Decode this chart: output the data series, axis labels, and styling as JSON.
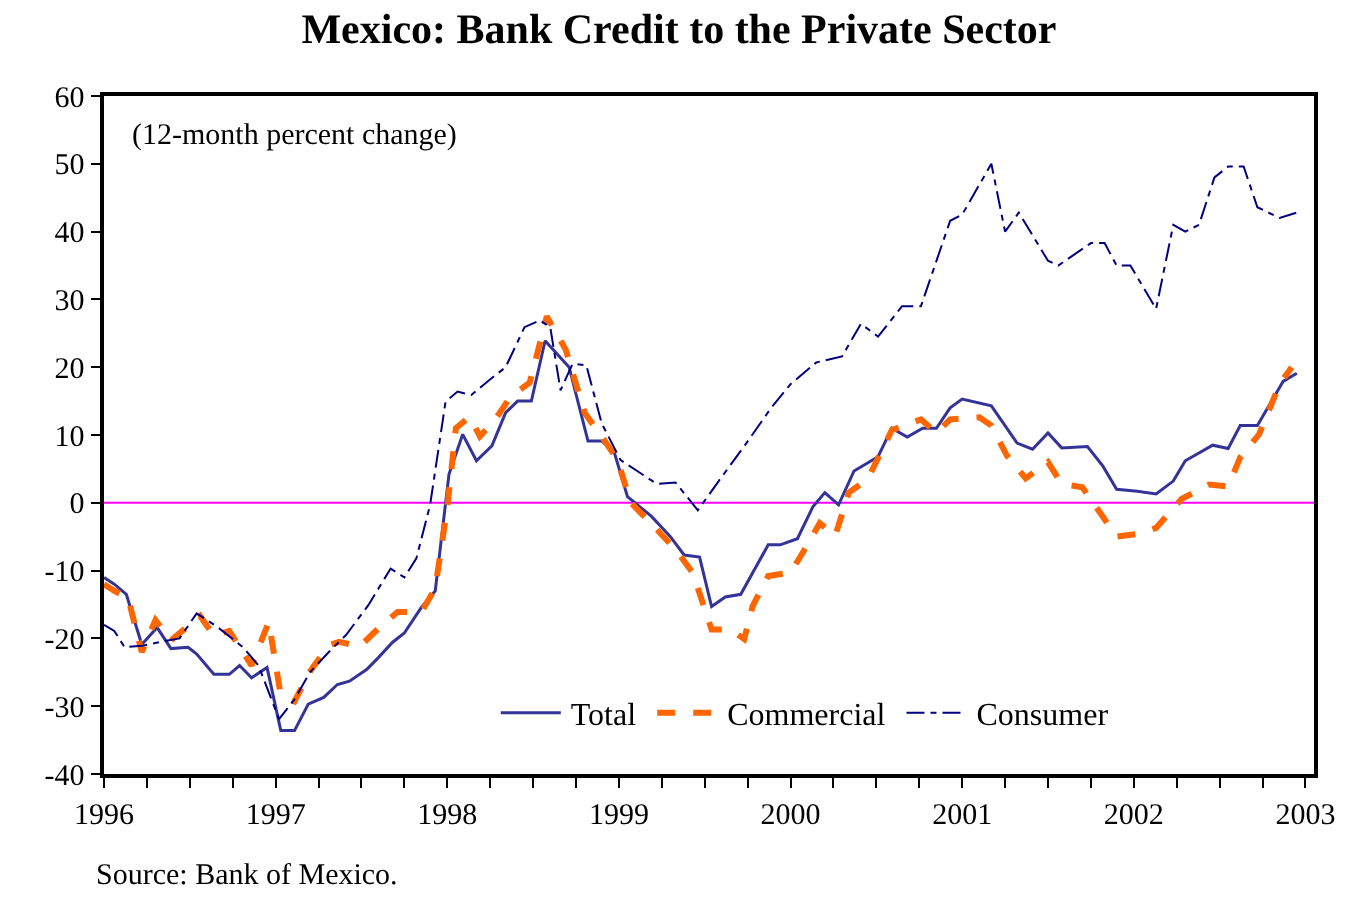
{
  "chart_data": {
    "type": "line",
    "title": "Mexico: Bank Credit to the Private Sector",
    "annotations": [
      "(12-month percent change)",
      "Source: Bank of Mexico."
    ],
    "xlim": [
      1996,
      2003.05
    ],
    "xticks": [
      1996,
      {
        "value": 1996.25,
        "label": null
      },
      {
        "value": 1996.5,
        "label": null
      },
      {
        "value": 1996.75,
        "label": null
      },
      1997,
      {
        "value": 1997.25,
        "label": null
      },
      {
        "value": 1997.5,
        "label": null
      },
      {
        "value": 1997.75,
        "label": null
      },
      1998,
      {
        "value": 1998.25,
        "label": null
      },
      {
        "value": 1998.5,
        "label": null
      },
      {
        "value": 1998.75,
        "label": null
      },
      1999,
      {
        "value": 1999.25,
        "label": null
      },
      {
        "value": 1999.5,
        "label": null
      },
      {
        "value": 1999.75,
        "label": null
      },
      2000,
      {
        "value": 2000.25,
        "label": null
      },
      {
        "value": 2000.5,
        "label": null
      },
      {
        "value": 2000.75,
        "label": null
      },
      2001,
      {
        "value": 2001.25,
        "label": null
      },
      {
        "value": 2001.5,
        "label": null
      },
      {
        "value": 2001.75,
        "label": null
      },
      2002,
      {
        "value": 2002.25,
        "label": null
      },
      {
        "value": 2002.5,
        "label": null
      },
      {
        "value": 2002.75,
        "label": null
      },
      2003
    ],
    "ylim": [
      -40,
      60
    ],
    "yticks": [
      -40,
      -30,
      -20,
      -10,
      0,
      10,
      20,
      30,
      40,
      50,
      60
    ],
    "grid": false,
    "legend": "bottom",
    "ref_lines": [
      {
        "axis": "y",
        "value": 0,
        "color": "#ff00ff"
      }
    ],
    "series": [
      {
        "name": "Total",
        "color": "#333399",
        "line_style": "solid",
        "x": [
          1996.0,
          1996.06,
          1996.13,
          1996.22,
          1996.31,
          1996.39,
          1996.49,
          1996.54,
          1996.64,
          1996.73,
          1996.79,
          1996.86,
          1996.95,
          1997.03,
          1997.11,
          1997.19,
          1997.28,
          1997.36,
          1997.43,
          1997.53,
          1997.6,
          1997.68,
          1997.75,
          1997.85,
          1997.93,
          1998.01,
          1998.09,
          1998.17,
          1998.26,
          1998.34,
          1998.41,
          1998.49,
          1998.57,
          1998.71,
          1998.82,
          1998.9,
          1998.97,
          1999.05,
          1999.19,
          1999.3,
          1999.38,
          1999.47,
          1999.54,
          1999.62,
          1999.71,
          1999.87,
          1999.94,
          2000.04,
          2000.13,
          2000.2,
          2000.28,
          2000.37,
          2000.51,
          2000.59,
          2000.68,
          2000.77,
          2000.85,
          2000.93,
          2001.0,
          2001.17,
          2001.32,
          2001.41,
          2001.5,
          2001.58,
          2001.73,
          2001.82,
          2001.9,
          2002.02,
          2002.13,
          2002.23,
          2002.3,
          2002.46,
          2002.55,
          2002.62,
          2002.72,
          2002.87,
          2002.95
        ],
        "values": [
          -11,
          -12,
          -13.5,
          -20.9,
          -18.4,
          -21.5,
          -21.3,
          -22.3,
          -25.3,
          -25.3,
          -24,
          -25.8,
          -24.3,
          -33.6,
          -33.6,
          -29.7,
          -28.7,
          -26.8,
          -26.3,
          -24.6,
          -22.8,
          -20.6,
          -19.2,
          -15.4,
          -13,
          4.2,
          10.1,
          6.2,
          8.4,
          13.3,
          15,
          15,
          23.9,
          20,
          9.1,
          9.1,
          7.7,
          0.9,
          -2,
          -5,
          -7.7,
          -8,
          -15.3,
          -13.9,
          -13.5,
          -6.2,
          -6.2,
          -5.3,
          -0.6,
          1.5,
          -0.3,
          4.7,
          6.8,
          11,
          9.7,
          11,
          11,
          14,
          15.3,
          14.3,
          8.8,
          7.9,
          10.3,
          8.1,
          8.3,
          5.4,
          2,
          1.7,
          1.3,
          3.2,
          6.2,
          8.5,
          8,
          11.4,
          11.4,
          17.9,
          19.1
        ]
      },
      {
        "name": "Commercial",
        "color": "#ff6600",
        "line_style": "dashed",
        "x": [
          1996.0,
          1996.06,
          1996.14,
          1996.22,
          1996.3,
          1996.39,
          1996.47,
          1996.56,
          1996.64,
          1996.73,
          1996.86,
          1996.96,
          1997.03,
          1997.11,
          1997.2,
          1997.31,
          1997.37,
          1997.49,
          1997.6,
          1997.71,
          1997.85,
          1997.93,
          1998.0,
          1998.05,
          1998.13,
          1998.19,
          1998.28,
          1998.37,
          1998.48,
          1998.58,
          1998.69,
          1998.8,
          1998.91,
          1998.99,
          1999.07,
          1999.22,
          1999.33,
          1999.43,
          1999.54,
          1999.65,
          1999.73,
          1999.78,
          1999.87,
          2000.0,
          2000.07,
          2000.17,
          2000.26,
          2000.34,
          2000.45,
          2000.59,
          2000.76,
          2000.85,
          2000.93,
          2001.1,
          2001.17,
          2001.26,
          2001.37,
          2001.5,
          2001.58,
          2001.7,
          2001.81,
          2001.9,
          2002.05,
          2002.13,
          2002.28,
          2002.44,
          2002.55,
          2002.62,
          2002.73,
          2002.85,
          2002.92
        ],
        "values": [
          -12,
          -13,
          -14,
          -22,
          -17.3,
          -20.3,
          -18.6,
          -16.7,
          -19.6,
          -18.9,
          -24,
          -17.6,
          -28.4,
          -29.3,
          -24.9,
          -21,
          -20.5,
          -21.2,
          -18.5,
          -16.1,
          -16.1,
          -12.6,
          -0.7,
          11,
          12.7,
          9.8,
          12.3,
          15.7,
          17.7,
          27.5,
          22.6,
          13.3,
          9.4,
          6.4,
          0,
          -3.9,
          -6.9,
          -10.3,
          -18.7,
          -18.7,
          -20.1,
          -15.2,
          -10.8,
          -10.3,
          -7.4,
          -3,
          -4.9,
          1.5,
          3.5,
          10.7,
          12.3,
          10.3,
          12.3,
          12.6,
          11.4,
          7,
          3.6,
          6,
          2.8,
          2.3,
          -1.7,
          -5,
          -4.5,
          -3.7,
          0.6,
          2.7,
          2.4,
          6.7,
          10.1,
          17.5,
          20
        ]
      },
      {
        "name": "Consumer",
        "color": "#000080",
        "line_style": "dashdot",
        "x": [
          1996.0,
          1996.06,
          1996.12,
          1996.22,
          1996.33,
          1996.44,
          1996.54,
          1996.66,
          1996.81,
          1996.9,
          1997.02,
          1997.11,
          1997.2,
          1997.31,
          1997.41,
          1997.54,
          1997.67,
          1997.75,
          1997.82,
          1997.9,
          1997.99,
          1998.06,
          1998.14,
          1998.24,
          1998.34,
          1998.45,
          1998.54,
          1998.6,
          1998.66,
          1998.73,
          1998.81,
          1998.9,
          1999.01,
          1999.1,
          1999.22,
          1999.33,
          1999.46,
          1999.57,
          1999.74,
          1999.89,
          2000.0,
          2000.15,
          2000.3,
          2000.41,
          2000.49,
          2000.51,
          2000.65,
          2000.76,
          2000.93,
          2001.0,
          2001.17,
          2001.25,
          2001.33,
          2001.5,
          2001.56,
          2001.75,
          2001.83,
          2001.9,
          2001.98,
          2002.13,
          2002.23,
          2002.3,
          2002.38,
          2002.47,
          2002.55,
          2002.64,
          2002.72,
          2002.85,
          2002.95
        ],
        "values": [
          -18,
          -18.9,
          -21.3,
          -21.1,
          -20.5,
          -20,
          -16.3,
          -18.3,
          -21.3,
          -24,
          -31.9,
          -29,
          -25,
          -22,
          -19.5,
          -15.1,
          -9.7,
          -11,
          -8.2,
          -0.3,
          14.9,
          16.4,
          15.9,
          18,
          20,
          25.9,
          26.9,
          25.9,
          16.6,
          20.5,
          20.3,
          11.7,
          6.3,
          4.8,
          2.8,
          3,
          -1.1,
          2.8,
          8.7,
          14.1,
          17.5,
          20.7,
          21.6,
          26.4,
          24.9,
          24.5,
          29,
          29,
          41.6,
          42.5,
          50,
          40,
          42.8,
          35.7,
          35,
          38.3,
          38.3,
          35,
          35,
          28.6,
          41,
          40,
          41,
          48,
          49.6,
          49.6,
          43.6,
          42,
          42.8
        ]
      }
    ]
  }
}
